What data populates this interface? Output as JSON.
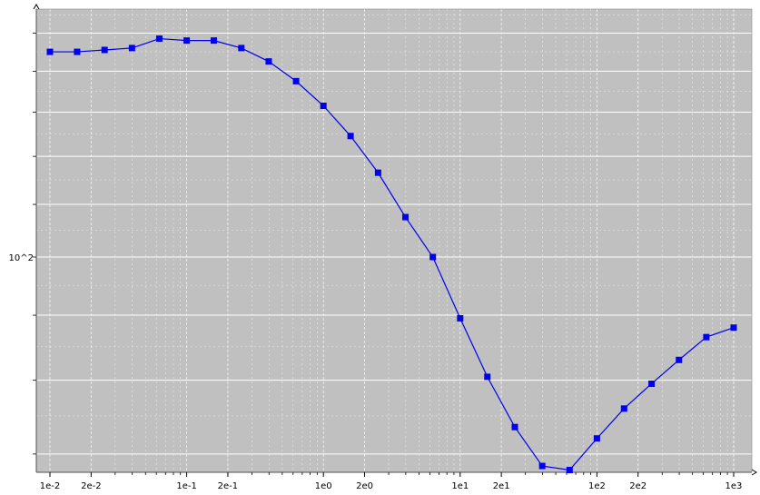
{
  "chart_data": {
    "type": "line",
    "title": "",
    "xlabel": "",
    "ylabel": "",
    "x_scale": "log",
    "y_scale": "log",
    "xlim": [
      0.01,
      1000
    ],
    "ylim": [
      60,
      160
    ],
    "grid": true,
    "plot_background": "#c0c0c0",
    "series_color": "#0000ee",
    "marker": "square",
    "x_tick_labels": [
      "1e-2",
      "2e-2",
      "1e-1",
      "2e-1",
      "1e0",
      "2e0",
      "1e1",
      "2e1",
      "1e2",
      "2e2",
      "1e3"
    ],
    "y_tick_labels": [
      "10^2"
    ],
    "series": [
      {
        "x": [
          0.01,
          0.0158,
          0.0251,
          0.0398,
          0.0631,
          0.1,
          0.158,
          0.251,
          0.398,
          0.631,
          1,
          1.58,
          2.51,
          3.98,
          6.31,
          10,
          15.8,
          25.1,
          39.8,
          63.1,
          100,
          158,
          251,
          398,
          631,
          1000
        ],
        "y": [
          145,
          145,
          145.5,
          146,
          148.5,
          148,
          148,
          146,
          142.5,
          137.5,
          131.5,
          124.5,
          116.5,
          107.5,
          100,
          89.5,
          80.5,
          73.5,
          68.5,
          68,
          72,
          76,
          79.5,
          83,
          86.5,
          88
        ]
      }
    ]
  }
}
